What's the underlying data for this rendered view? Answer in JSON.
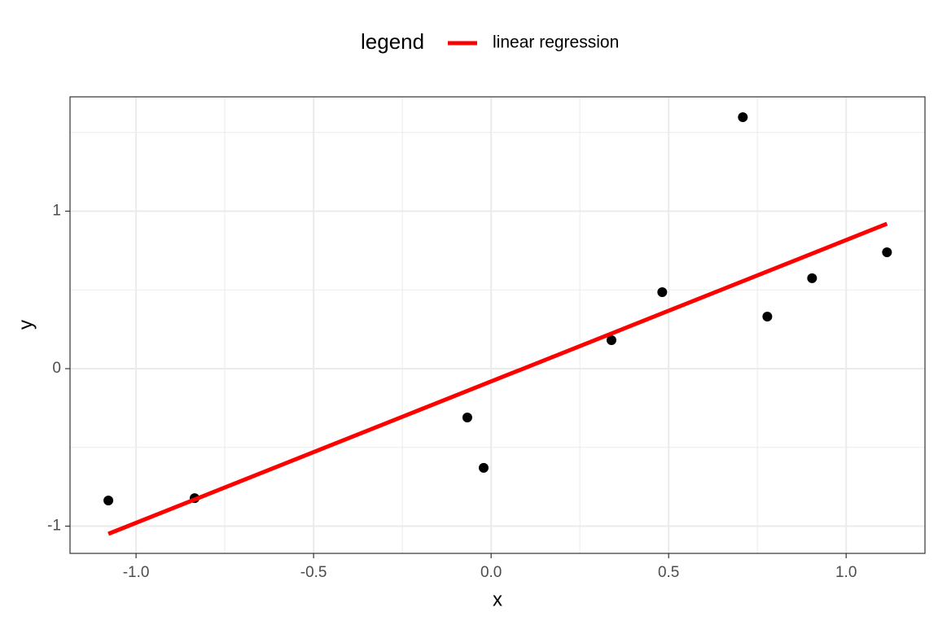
{
  "chart_data": {
    "type": "scatter",
    "legend_title": "legend",
    "legend_position": "top",
    "x_label": "x",
    "y_label": "y",
    "grid": true,
    "xlim": [
      -1.186,
      1.222
    ],
    "ylim": [
      -1.173,
      1.726
    ],
    "xticks": [
      {
        "value": -1,
        "label": "-1.0"
      },
      -0.5,
      {
        "value": 0,
        "label": "0.0"
      },
      0.5,
      {
        "value": 1,
        "label": "1.0"
      }
    ],
    "yticks": [
      -1,
      0,
      1
    ],
    "points": {
      "color": "#000000",
      "x": [
        -1.078,
        -0.835,
        -0.067,
        -0.021,
        0.339,
        0.482,
        0.709,
        0.778,
        0.904,
        1.115
      ],
      "values": [
        -0.837,
        -0.822,
        -0.31,
        -0.63,
        0.181,
        0.486,
        1.597,
        0.331,
        0.574,
        0.739
      ]
    },
    "series": [
      {
        "name": "linear regression",
        "type": "line",
        "color": "#ff0000",
        "x": [
          -1.078,
          1.115
        ],
        "values": [
          -1.049,
          0.92
        ]
      }
    ]
  }
}
